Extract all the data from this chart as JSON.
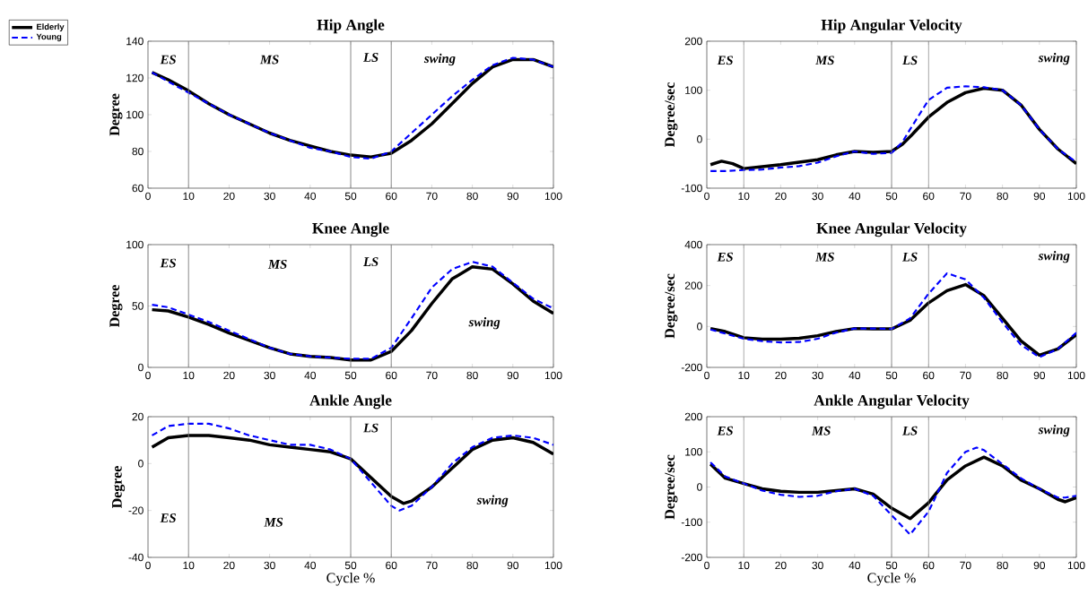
{
  "chart_data": [
    {
      "type": "line",
      "title": "Hip Angle",
      "ylabel": "Degree",
      "xlim": [
        0,
        100
      ],
      "xticks": [
        0,
        10,
        20,
        30,
        40,
        50,
        60,
        70,
        80,
        90,
        100
      ],
      "ylim": [
        60,
        140
      ],
      "yticks": [
        60,
        80,
        100,
        120,
        140
      ],
      "legend": "top left",
      "ref_lines": [
        {
          "axis": "x",
          "value": 10,
          "color": "#808080"
        },
        {
          "axis": "x",
          "value": 50,
          "color": "#808080"
        },
        {
          "axis": "x",
          "value": 60,
          "color": "#808080"
        }
      ],
      "annotations": [
        "ES",
        "MS",
        "LS",
        "swing"
      ],
      "series": [
        {
          "name": "Elderly",
          "color": "#000000",
          "line_style": "solid",
          "x": [
            1,
            5,
            10,
            15,
            20,
            25,
            30,
            35,
            40,
            45,
            50,
            55,
            60,
            65,
            70,
            75,
            80,
            85,
            90,
            95,
            100
          ],
          "values": [
            123,
            119,
            113,
            106,
            100,
            95,
            90,
            86,
            83,
            80,
            78,
            77,
            79,
            86,
            95,
            106,
            117,
            126,
            130,
            130,
            126
          ]
        },
        {
          "name": "Young",
          "color": "#0000ff",
          "line_style": "dashed",
          "x": [
            1,
            5,
            10,
            15,
            20,
            25,
            30,
            35,
            40,
            45,
            50,
            55,
            60,
            65,
            70,
            75,
            80,
            85,
            90,
            95,
            100
          ],
          "values": [
            123,
            118,
            112,
            106,
            100,
            95,
            90,
            86,
            82,
            80,
            77,
            76,
            80,
            90,
            100,
            110,
            119,
            127,
            131,
            130,
            126
          ]
        }
      ]
    },
    {
      "type": "line",
      "title": "Hip Angular Velocity",
      "ylabel": "Degree/sec",
      "xlim": [
        0,
        100
      ],
      "xticks": [
        0,
        10,
        20,
        30,
        40,
        50,
        60,
        70,
        80,
        90,
        100
      ],
      "ylim": [
        -100,
        200
      ],
      "yticks": [
        -100,
        0,
        100,
        200
      ],
      "ref_lines": [
        {
          "axis": "x",
          "value": 10,
          "color": "#808080"
        },
        {
          "axis": "x",
          "value": 50,
          "color": "#808080"
        },
        {
          "axis": "x",
          "value": 60,
          "color": "#808080"
        }
      ],
      "annotations": [
        "ES",
        "MS",
        "LS",
        "swing"
      ],
      "series": [
        {
          "color": "#000000",
          "line_style": "solid",
          "x": [
            1,
            4,
            7,
            10,
            15,
            20,
            25,
            30,
            35,
            40,
            45,
            50,
            53,
            55,
            60,
            65,
            70,
            75,
            80,
            85,
            90,
            95,
            100
          ],
          "values": [
            -52,
            -45,
            -50,
            -60,
            -56,
            -52,
            -47,
            -42,
            -32,
            -25,
            -27,
            -25,
            -10,
            5,
            45,
            75,
            95,
            104,
            100,
            70,
            20,
            -20,
            -50
          ]
        },
        {
          "color": "#0000ff",
          "line_style": "dashed",
          "x": [
            1,
            5,
            10,
            15,
            20,
            25,
            30,
            35,
            40,
            45,
            50,
            53,
            55,
            60,
            65,
            70,
            75,
            80,
            85,
            90,
            95,
            100
          ],
          "values": [
            -65,
            -65,
            -63,
            -62,
            -58,
            -55,
            -48,
            -35,
            -25,
            -30,
            -28,
            -5,
            20,
            80,
            105,
            108,
            106,
            100,
            70,
            20,
            -20,
            -47
          ]
        }
      ]
    },
    {
      "type": "line",
      "title": "Knee Angle",
      "ylabel": "Degree",
      "xlim": [
        0,
        100
      ],
      "xticks": [
        0,
        10,
        20,
        30,
        40,
        50,
        60,
        70,
        80,
        90,
        100
      ],
      "ylim": [
        0,
        100
      ],
      "yticks": [
        0,
        50,
        100
      ],
      "ref_lines": [
        {
          "axis": "x",
          "value": 10,
          "color": "#808080"
        },
        {
          "axis": "x",
          "value": 50,
          "color": "#808080"
        },
        {
          "axis": "x",
          "value": 60,
          "color": "#808080"
        }
      ],
      "annotations": [
        "ES",
        "MS",
        "LS",
        "swing"
      ],
      "series": [
        {
          "color": "#000000",
          "line_style": "solid",
          "x": [
            1,
            5,
            10,
            15,
            20,
            25,
            30,
            35,
            40,
            45,
            50,
            55,
            60,
            65,
            70,
            75,
            80,
            85,
            90,
            95,
            100
          ],
          "values": [
            47,
            46,
            41,
            35,
            28,
            22,
            16,
            11,
            9,
            8,
            6,
            6,
            13,
            30,
            52,
            72,
            82,
            80,
            68,
            54,
            44
          ]
        },
        {
          "color": "#0000ff",
          "line_style": "dashed",
          "x": [
            1,
            5,
            10,
            15,
            20,
            25,
            30,
            35,
            40,
            45,
            50,
            55,
            60,
            65,
            70,
            75,
            80,
            85,
            90,
            95,
            100
          ],
          "values": [
            51,
            49,
            43,
            37,
            30,
            23,
            16,
            11,
            9,
            8,
            7,
            7,
            16,
            40,
            65,
            80,
            86,
            82,
            69,
            56,
            48
          ]
        }
      ]
    },
    {
      "type": "line",
      "title": "Knee Angular Velocity",
      "ylabel": "Degree/sec",
      "xlim": [
        0,
        100
      ],
      "xticks": [
        0,
        10,
        20,
        30,
        40,
        50,
        60,
        70,
        80,
        90,
        100
      ],
      "ylim": [
        -200,
        400
      ],
      "yticks": [
        -200,
        0,
        200,
        400
      ],
      "ref_lines": [
        {
          "axis": "x",
          "value": 10,
          "color": "#808080"
        },
        {
          "axis": "x",
          "value": 50,
          "color": "#808080"
        },
        {
          "axis": "x",
          "value": 60,
          "color": "#808080"
        }
      ],
      "annotations": [
        "ES",
        "MS",
        "LS",
        "swing"
      ],
      "series": [
        {
          "color": "#000000",
          "line_style": "solid",
          "x": [
            1,
            5,
            10,
            15,
            20,
            25,
            30,
            35,
            40,
            45,
            50,
            55,
            60,
            65,
            70,
            75,
            80,
            85,
            90,
            95,
            100
          ],
          "values": [
            -10,
            -25,
            -55,
            -62,
            -62,
            -58,
            -45,
            -25,
            -10,
            -12,
            -12,
            30,
            115,
            175,
            205,
            150,
            40,
            -70,
            -140,
            -110,
            -40
          ]
        },
        {
          "color": "#0000ff",
          "line_style": "dashed",
          "x": [
            1,
            5,
            10,
            15,
            20,
            25,
            30,
            35,
            40,
            45,
            50,
            55,
            60,
            65,
            70,
            75,
            80,
            85,
            90,
            95,
            100
          ],
          "values": [
            -15,
            -35,
            -60,
            -72,
            -78,
            -76,
            -60,
            -30,
            -10,
            -10,
            -12,
            40,
            160,
            260,
            230,
            140,
            20,
            -90,
            -150,
            -110,
            -30
          ]
        }
      ]
    },
    {
      "type": "line",
      "title": "Ankle Angle",
      "xlabel": "Cycle %",
      "ylabel": "Degree",
      "xlim": [
        0,
        100
      ],
      "xticks": [
        0,
        10,
        20,
        30,
        40,
        50,
        60,
        70,
        80,
        90,
        100
      ],
      "ylim": [
        -40,
        20
      ],
      "yticks": [
        -40,
        -20,
        0,
        20
      ],
      "ref_lines": [
        {
          "axis": "x",
          "value": 10,
          "color": "#808080"
        },
        {
          "axis": "x",
          "value": 50,
          "color": "#808080"
        },
        {
          "axis": "x",
          "value": 60,
          "color": "#808080"
        }
      ],
      "annotations": [
        "ES",
        "MS",
        "LS",
        "swing"
      ],
      "series": [
        {
          "color": "#000000",
          "line_style": "solid",
          "x": [
            1,
            5,
            10,
            15,
            20,
            25,
            30,
            35,
            40,
            45,
            50,
            55,
            60,
            63,
            65,
            70,
            75,
            80,
            85,
            90,
            95,
            100
          ],
          "values": [
            7,
            11,
            12,
            12,
            11,
            10,
            8,
            7,
            6,
            5,
            2,
            -6,
            -14,
            -17,
            -16,
            -10,
            -2,
            6,
            10,
            11,
            9,
            4
          ]
        },
        {
          "color": "#0000ff",
          "line_style": "dashed",
          "x": [
            1,
            5,
            10,
            15,
            20,
            25,
            30,
            35,
            40,
            45,
            50,
            55,
            60,
            62,
            65,
            70,
            75,
            80,
            85,
            90,
            95,
            100
          ],
          "values": [
            12,
            16,
            17,
            17,
            15,
            12,
            10,
            8,
            8,
            6,
            2,
            -8,
            -18,
            -20,
            -18,
            -10,
            0,
            7,
            11,
            12,
            11,
            8
          ]
        }
      ]
    },
    {
      "type": "line",
      "title": "Ankle Angular Velocity",
      "xlabel": "Cycle %",
      "ylabel": "Degree/sec",
      "xlim": [
        0,
        100
      ],
      "xticks": [
        0,
        10,
        20,
        30,
        40,
        50,
        60,
        70,
        80,
        90,
        100
      ],
      "ylim": [
        -200,
        200
      ],
      "yticks": [
        -200,
        -100,
        0,
        100,
        200
      ],
      "ref_lines": [
        {
          "axis": "x",
          "value": 10,
          "color": "#808080"
        },
        {
          "axis": "x",
          "value": 50,
          "color": "#808080"
        },
        {
          "axis": "x",
          "value": 60,
          "color": "#808080"
        }
      ],
      "annotations": [
        "ES",
        "MS",
        "LS",
        "swing"
      ],
      "series": [
        {
          "color": "#000000",
          "line_style": "solid",
          "x": [
            1,
            5,
            10,
            15,
            20,
            25,
            30,
            35,
            40,
            45,
            50,
            55,
            60,
            65,
            70,
            75,
            80,
            85,
            90,
            95,
            97,
            100
          ],
          "values": [
            65,
            25,
            10,
            -5,
            -12,
            -15,
            -15,
            -10,
            -5,
            -20,
            -60,
            -90,
            -45,
            20,
            60,
            85,
            60,
            20,
            -5,
            -35,
            -42,
            -30
          ]
        },
        {
          "color": "#0000ff",
          "line_style": "dashed",
          "x": [
            1,
            5,
            10,
            15,
            20,
            25,
            30,
            35,
            40,
            45,
            50,
            55,
            60,
            65,
            70,
            73,
            75,
            80,
            85,
            90,
            95,
            97,
            100
          ],
          "values": [
            70,
            30,
            10,
            -10,
            -22,
            -28,
            -25,
            -12,
            -5,
            -25,
            -80,
            -135,
            -70,
            40,
            100,
            112,
            105,
            65,
            25,
            -5,
            -30,
            -30,
            -25
          ]
        }
      ]
    }
  ]
}
